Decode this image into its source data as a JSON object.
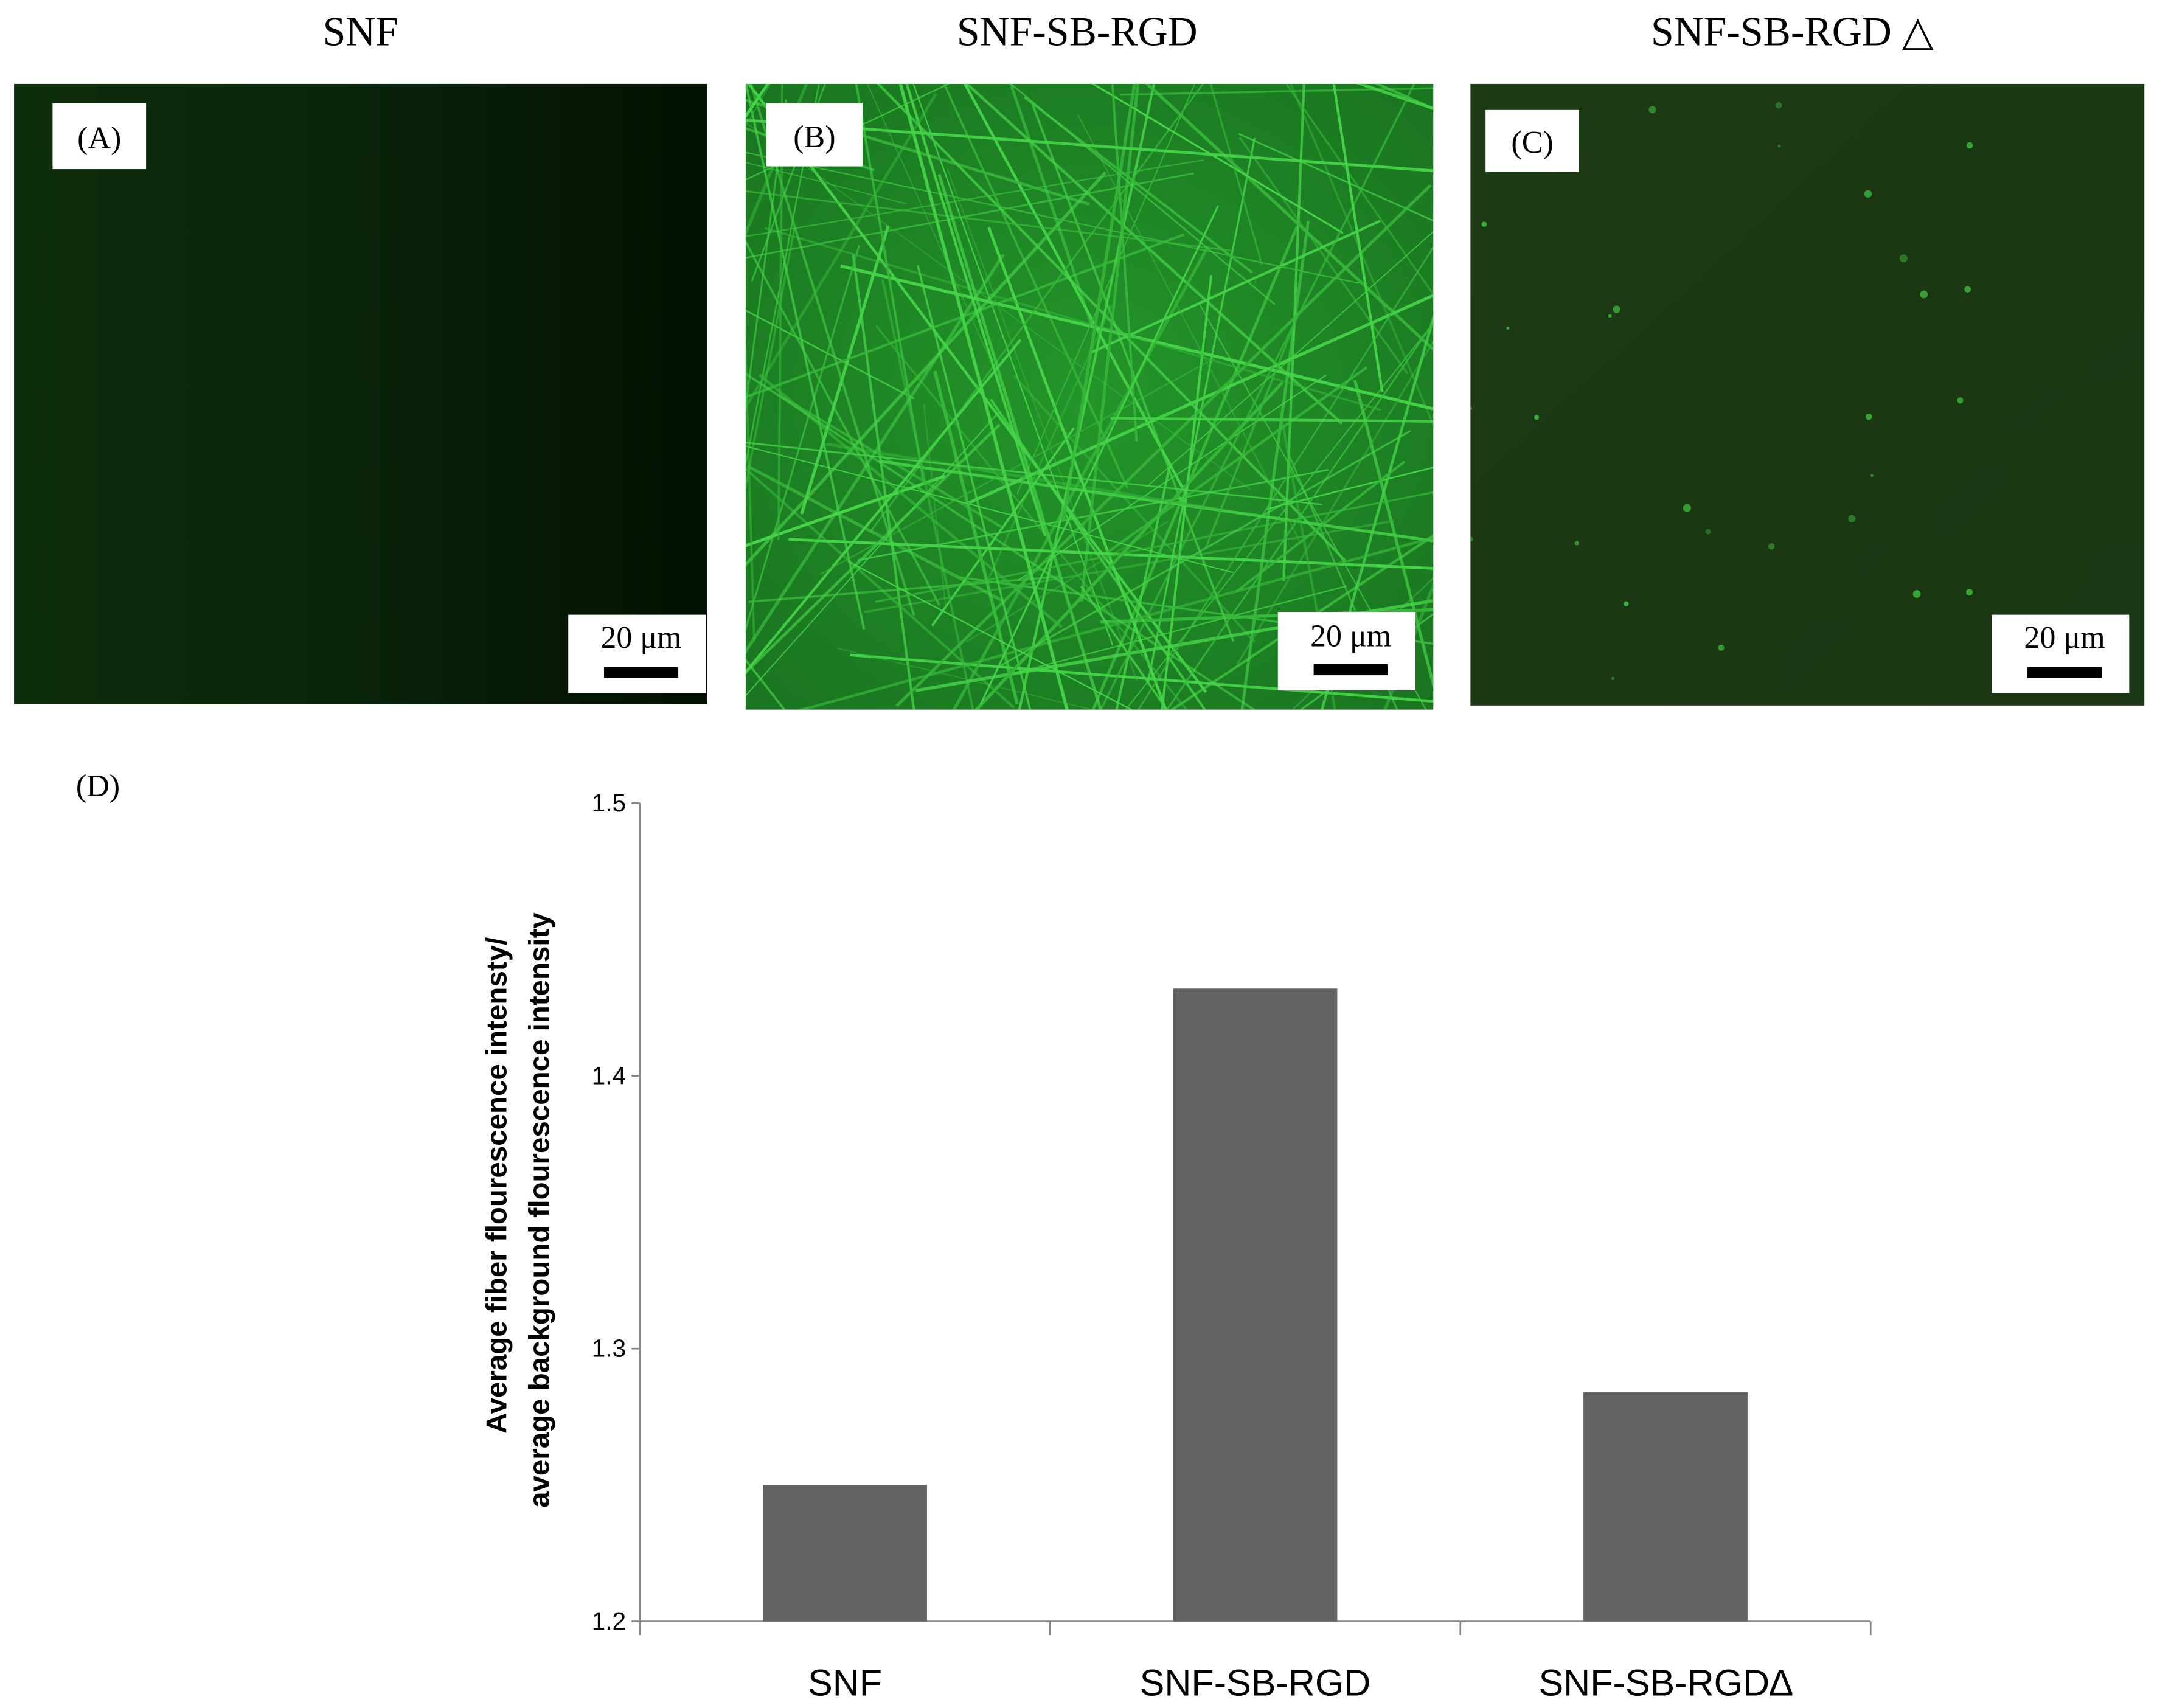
{
  "panels": [
    {
      "title": "SNF",
      "label": "(A)",
      "scale_bar": "20 μm"
    },
    {
      "title": "SNF-SB-RGD",
      "label": "(B)",
      "scale_bar": "20 μm"
    },
    {
      "title": "SNF-SB-RGD △",
      "label": "(C)",
      "scale_bar": "20 μm"
    }
  ],
  "chart_data": {
    "type": "bar",
    "label": "(D)",
    "ylabel": [
      "Average fiber flourescence intensty/",
      "average background flourescence intensity"
    ],
    "categories": [
      "SNF",
      "SNF-SB-RGD",
      "SNF-SB-RGD∆"
    ],
    "values": [
      1.25,
      1.432,
      1.284
    ],
    "color": "#636363",
    "ylim": [
      1.2,
      1.5
    ],
    "yticks": [
      1.2,
      1.3,
      1.4,
      1.5
    ],
    "grid": false
  }
}
